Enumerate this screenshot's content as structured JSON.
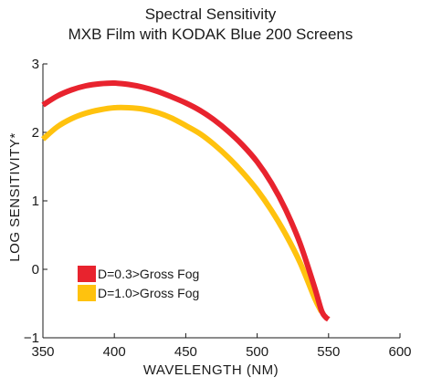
{
  "chart_data": {
    "type": "line",
    "title": "Spectral Sensitivity",
    "subtitle": "MXB Film with KODAK Blue 200 Screens",
    "xlabel": "WAVELENGTH (NM)",
    "ylabel": "LOG SENSITIVITY*",
    "xlim": [
      350,
      600
    ],
    "ylim": [
      -1,
      3
    ],
    "xticks": [
      350,
      400,
      450,
      500,
      550,
      600
    ],
    "yticks": [
      -1,
      0,
      1,
      2,
      3
    ],
    "xtick_labels": [
      "350",
      "400",
      "450",
      "500",
      "550",
      "600"
    ],
    "ytick_labels": [
      "−1",
      "0",
      "1",
      "2",
      "3"
    ],
    "grid": false,
    "legend_position": "bottom-left",
    "series": [
      {
        "name": "D=0.3>Gross Fog",
        "color": "#E8232E",
        "x": [
          350,
          360,
          370,
          380,
          390,
          400,
          410,
          420,
          430,
          440,
          450,
          460,
          470,
          480,
          490,
          500,
          510,
          520,
          530,
          540,
          545,
          548,
          550
        ],
        "y": [
          2.4,
          2.53,
          2.62,
          2.68,
          2.71,
          2.72,
          2.7,
          2.66,
          2.6,
          2.52,
          2.43,
          2.32,
          2.18,
          2.01,
          1.81,
          1.57,
          1.26,
          0.87,
          0.38,
          -0.25,
          -0.6,
          -0.7,
          -0.73
        ]
      },
      {
        "name": "D=1.0>Gross Fog",
        "color": "#FFC20E",
        "x": [
          350,
          360,
          370,
          380,
          390,
          400,
          410,
          420,
          430,
          440,
          450,
          460,
          470,
          480,
          490,
          500,
          510,
          520,
          530,
          540,
          545
        ],
        "y": [
          1.9,
          2.08,
          2.2,
          2.28,
          2.33,
          2.36,
          2.36,
          2.34,
          2.29,
          2.21,
          2.1,
          1.98,
          1.82,
          1.63,
          1.41,
          1.16,
          0.86,
          0.51,
          0.1,
          -0.41,
          -0.62
        ]
      }
    ]
  }
}
